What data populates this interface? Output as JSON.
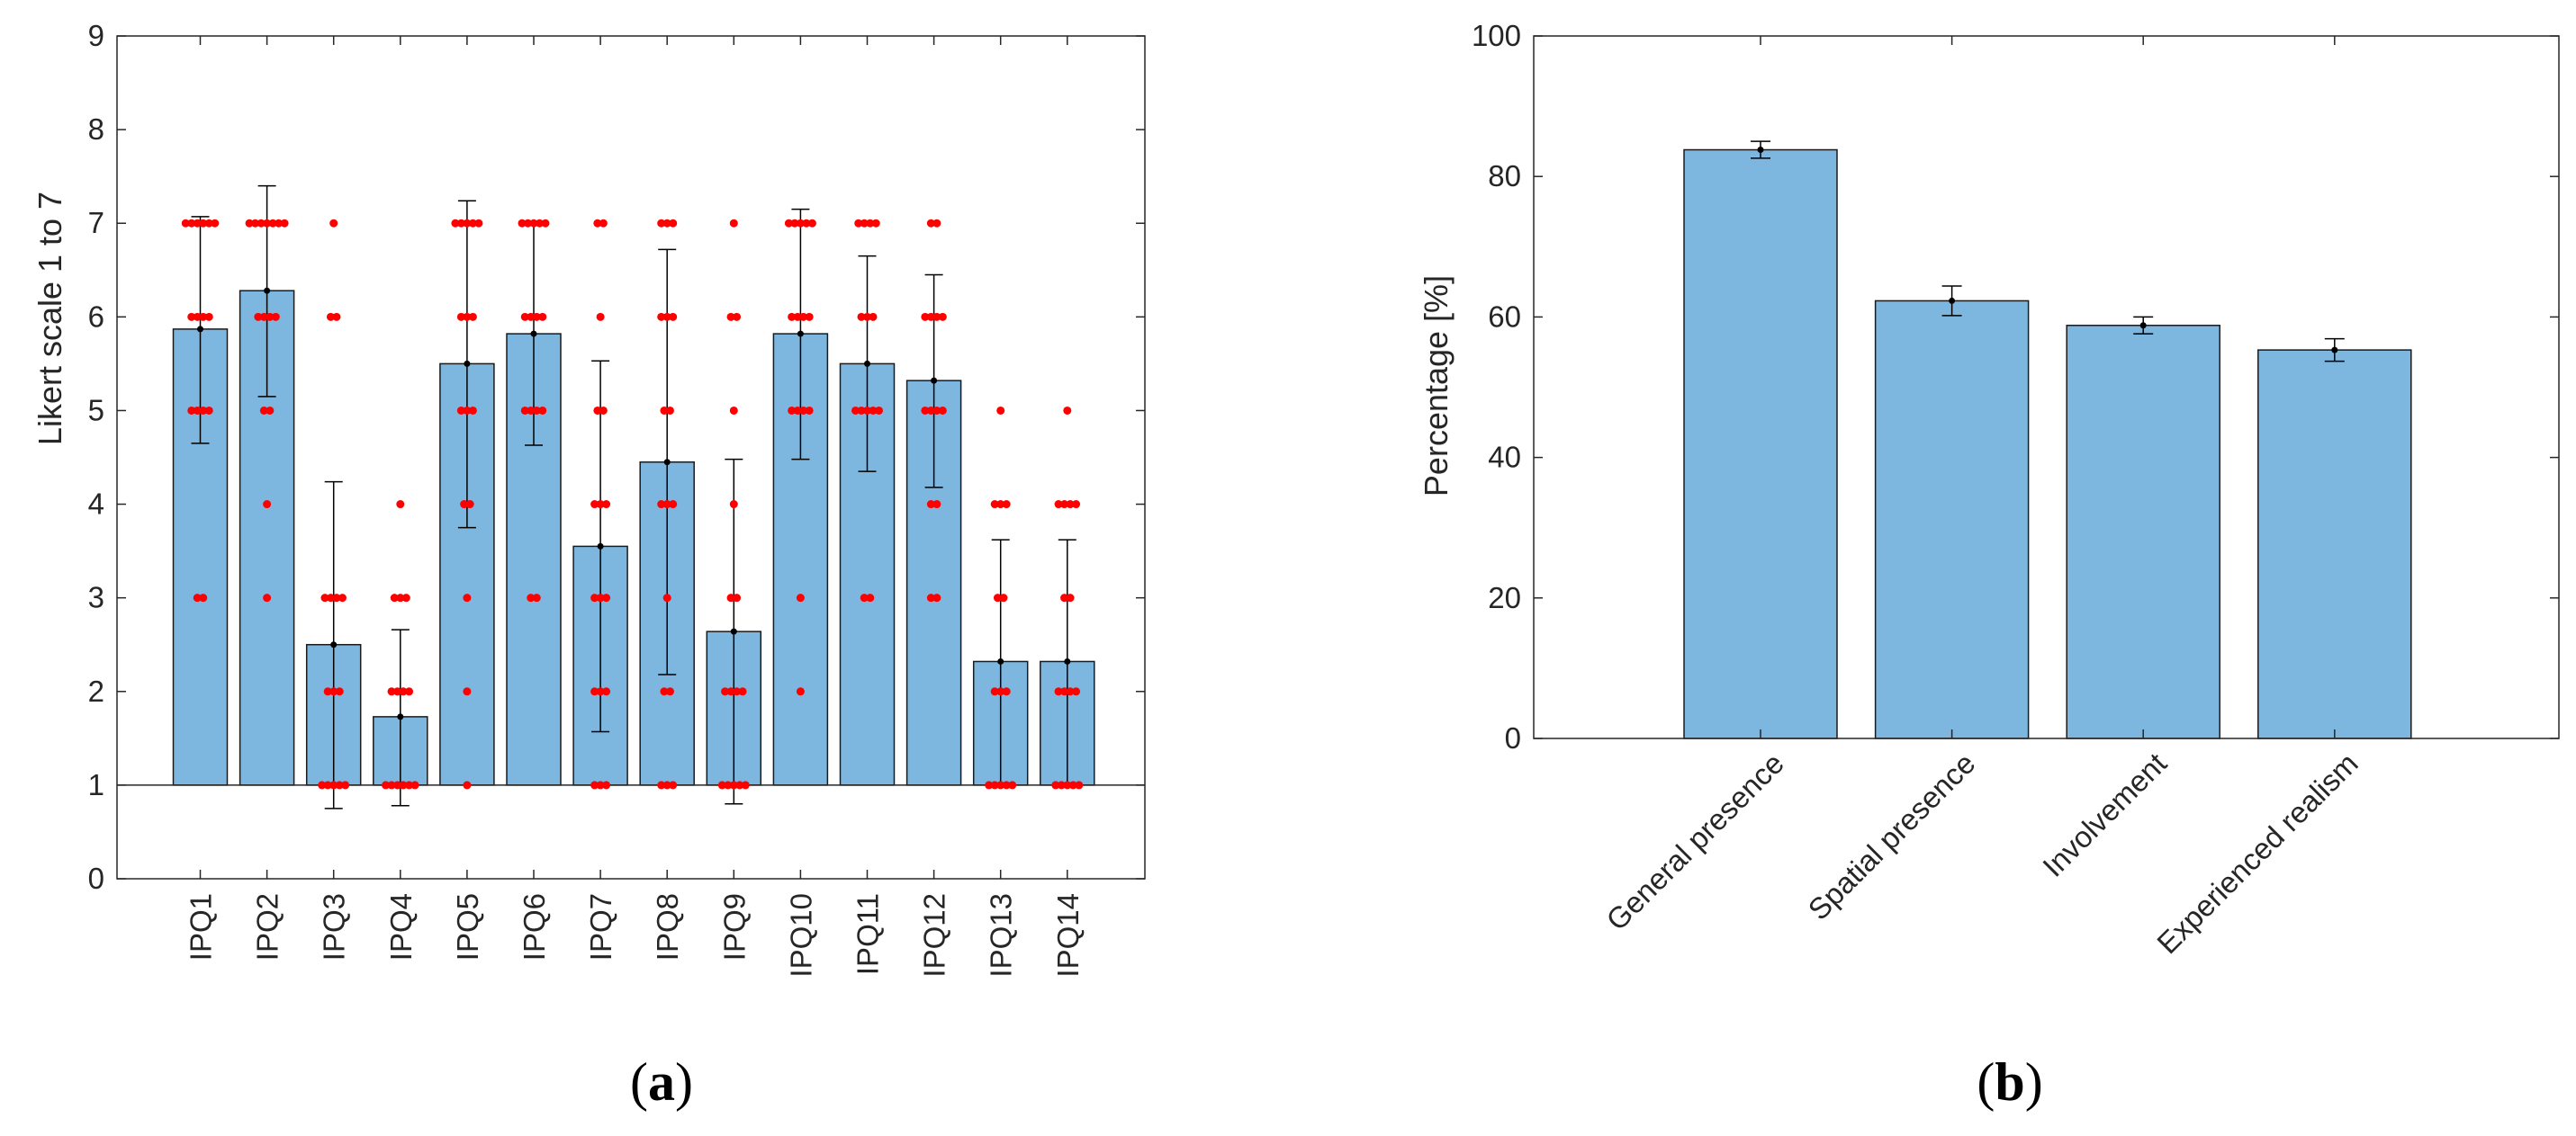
{
  "chart_data": [
    {
      "type": "bar",
      "panel_label": "(a)",
      "categories": [
        "IPQ1",
        "IPQ2",
        "IPQ3",
        "IPQ4",
        "IPQ5",
        "IPQ6",
        "IPQ7",
        "IPQ8",
        "IPQ9",
        "IPQ10",
        "IPQ11",
        "IPQ12",
        "IPQ13",
        "IPQ14"
      ],
      "values": [
        5.87,
        6.28,
        2.5,
        1.73,
        5.5,
        5.82,
        3.55,
        4.45,
        2.64,
        5.82,
        5.5,
        5.32,
        2.32,
        2.32
      ],
      "error_low": [
        4.65,
        5.15,
        0.75,
        0.78,
        3.75,
        4.63,
        1.57,
        2.18,
        0.8,
        4.48,
        4.35,
        4.18,
        1.0,
        1.0
      ],
      "error_high": [
        7.07,
        7.4,
        4.24,
        2.66,
        7.24,
        7.0,
        5.53,
        6.72,
        4.48,
        7.15,
        6.65,
        6.45,
        3.62,
        3.62
      ],
      "scatter": [
        [
          3,
          3,
          5,
          5,
          5,
          5,
          6,
          6,
          6,
          6,
          7,
          7,
          7,
          7,
          7,
          7
        ],
        [
          3,
          4,
          5,
          5,
          6,
          6,
          6,
          6,
          7,
          7,
          7,
          7,
          7,
          7,
          7
        ],
        [
          1,
          1,
          1,
          1,
          1,
          2,
          2,
          2,
          3,
          3,
          3,
          3,
          6,
          6,
          7
        ],
        [
          1,
          1,
          1,
          1,
          1,
          1,
          2,
          2,
          2,
          2,
          3,
          3,
          3,
          4
        ],
        [
          1,
          2,
          3,
          4,
          4,
          5,
          5,
          5,
          6,
          6,
          6,
          7,
          7,
          7,
          7,
          7
        ],
        [
          3,
          3,
          5,
          5,
          5,
          5,
          6,
          6,
          6,
          6,
          7,
          7,
          7,
          7,
          7
        ],
        [
          1,
          1,
          1,
          2,
          2,
          2,
          3,
          3,
          3,
          4,
          4,
          4,
          5,
          5,
          6,
          7,
          7
        ],
        [
          1,
          1,
          1,
          2,
          2,
          3,
          4,
          4,
          4,
          5,
          5,
          6,
          6,
          6,
          7,
          7,
          7
        ],
        [
          1,
          1,
          1,
          1,
          1,
          2,
          2,
          2,
          2,
          3,
          3,
          4,
          5,
          6,
          6,
          7
        ],
        [
          2,
          3,
          5,
          5,
          5,
          5,
          6,
          6,
          6,
          6,
          7,
          7,
          7,
          7,
          7
        ],
        [
          3,
          3,
          5,
          5,
          5,
          5,
          5,
          6,
          6,
          6,
          7,
          7,
          7,
          7
        ],
        [
          3,
          3,
          4,
          4,
          5,
          5,
          5,
          5,
          6,
          6,
          6,
          6,
          7,
          7
        ],
        [
          1,
          1,
          1,
          1,
          1,
          2,
          2,
          2,
          3,
          3,
          4,
          4,
          4,
          5
        ],
        [
          1,
          1,
          1,
          1,
          1,
          2,
          2,
          2,
          2,
          3,
          3,
          4,
          4,
          4,
          4,
          5
        ]
      ],
      "baseline": 1,
      "ylabel": "Likert scale 1 to 7",
      "xlabel": "",
      "ylim": [
        0,
        9
      ],
      "yticks": [
        0,
        1,
        2,
        3,
        4,
        5,
        6,
        7,
        8,
        9
      ],
      "grid": false,
      "colors": {
        "bar": "#7db6de",
        "scatter": "#ff0000",
        "error": "#000000"
      }
    },
    {
      "type": "bar",
      "panel_label": "(b)",
      "categories": [
        "General presence",
        "Spatial presence",
        "Involvement",
        "Experienced realism"
      ],
      "values": [
        83.8,
        62.3,
        58.8,
        55.3
      ],
      "error_low": [
        82.6,
        60.2,
        57.6,
        53.7
      ],
      "error_high": [
        85.0,
        64.4,
        60.0,
        56.9
      ],
      "ylabel": "Percentage [%]",
      "xlabel": "",
      "ylim": [
        0,
        100
      ],
      "yticks": [
        0,
        20,
        40,
        60,
        80,
        100
      ],
      "grid": false,
      "colors": {
        "bar": "#7db6de",
        "error": "#000000"
      }
    }
  ]
}
